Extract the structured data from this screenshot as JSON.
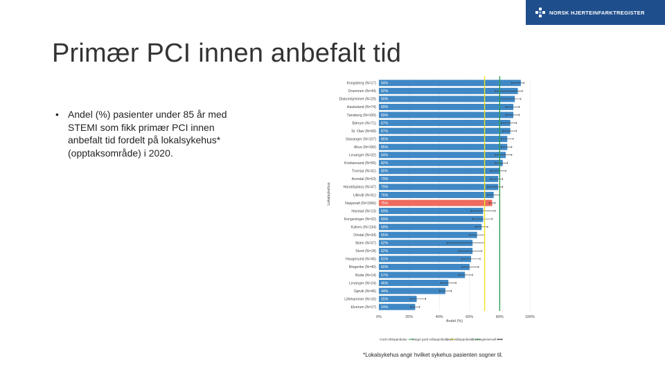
{
  "header": {
    "logo_text": "NORSK HJERTEINFARKTREGISTER",
    "logo_icon": "registry-cross-icon",
    "brand_color": "#1f4e8c"
  },
  "slide": {
    "title": "Primær PCI innen anbefalt tid",
    "bullet_marker": "•",
    "bullet": "Andel (%) pasienter under 85 år med STEMI som fikk primær PCI innen anbefalt tid fordelt på lokalsykehus* (opptaksområde) i 2020.",
    "footnote": "*Lokalsykehus angir hvilket sykehus pasienten sogner til."
  },
  "chart_data": {
    "type": "bar",
    "orientation": "horizontal",
    "title": "",
    "xlabel": "Andel (%)",
    "ylabel": "Lokalsykehus",
    "xlim": [
      0,
      100
    ],
    "xticks": [
      "0%",
      "20%",
      "40%",
      "60%",
      "80%",
      "100%"
    ],
    "categories": [
      "Kongsberg (N=17)",
      "Drammen (N=44)",
      "Diakonhjemmet (N=29)",
      "Haukeland (N=74)",
      "Tønsberg (N=100)",
      "Bærum (N=71)",
      "St. Olav (N=68)",
      "Stavanger (N=107)",
      "Ahus (N=190)",
      "Levanger (N=32)",
      "Kristiansand (N=56)",
      "Tromsø (N=41)",
      "Arendal (N=53)",
      "Haraldsplass (N=47)",
      "Ullevål (N=61)",
      "Nasjonalt (N=1566)",
      "Harstad (N=13)",
      "Kongsvinger (N=32)",
      "Kalnes (N=134)",
      "Orkdal (N=34)",
      "Skien (N=57)",
      "Stord (N=18)",
      "Haugesund (N=46)",
      "Ringerike (N=40)",
      "Bodø (N=14)",
      "Levanger (N=24)",
      "Gjøvik (N=46)",
      "Lillehammer (N=16)",
      "Elverum (N=17)"
    ],
    "values": [
      94,
      92,
      90,
      89,
      89,
      87,
      87,
      85,
      85,
      84,
      82,
      80,
      79,
      79,
      76,
      75,
      69,
      69,
      68,
      65,
      62,
      62,
      61,
      60,
      57,
      46,
      44,
      25,
      24
    ],
    "value_labels": [
      "94%",
      "92%",
      "90%",
      "89%",
      "89%",
      "87%",
      "87%",
      "85%",
      "85%",
      "84%",
      "82%",
      "80%",
      "79%",
      "79%",
      "76%",
      "75%",
      "69%",
      "69%",
      "68%",
      "65%",
      "62%",
      "62%",
      "61%",
      "60%",
      "57%",
      "46%",
      "44%",
      "25%",
      "24%"
    ],
    "error_intervals": [
      [
        88,
        96
      ],
      [
        77,
        95
      ],
      [
        80,
        94
      ],
      [
        84,
        93
      ],
      [
        84,
        93
      ],
      [
        81,
        91
      ],
      [
        82,
        91
      ],
      [
        81,
        89
      ],
      [
        81,
        88
      ],
      [
        77,
        88
      ],
      [
        77,
        85
      ],
      [
        74,
        84
      ],
      [
        74,
        82
      ],
      [
        72,
        82
      ],
      [
        72,
        80
      ],
      [
        73,
        77
      ],
      [
        61,
        77
      ],
      [
        62,
        75
      ],
      [
        64,
        72
      ],
      [
        60,
        70
      ],
      [
        45,
        70
      ],
      [
        53,
        68
      ],
      [
        55,
        67
      ],
      [
        55,
        66
      ],
      [
        53,
        62
      ],
      [
        41,
        51
      ],
      [
        40,
        48
      ],
      [
        21,
        31
      ],
      [
        21,
        27
      ]
    ],
    "highlight_category": "Nasjonalt (N=1566)",
    "reference_lines": [
      {
        "name": "Godt måloppnåelse",
        "value": 80,
        "color": "#2e9e4f"
      },
      {
        "name": "Meget godt måloppnåelse",
        "value": 70,
        "color": "#f0e020"
      }
    ],
    "colors": {
      "bar": "#3f88c5",
      "highlight": "#ee6b5e",
      "error": "#333333",
      "grid": "#e6e6e6"
    },
    "legend": [
      {
        "label": "Godt måloppnåelse",
        "style": "line",
        "color": "#2e9e4f"
      },
      {
        "label": "Meget godt måloppnåelse",
        "style": "line",
        "color": "#f0e020"
      },
      {
        "label": "Godt måloppnåelse",
        "style": "line",
        "color": "#2e9e4f"
      },
      {
        "label": "Dovningsintervall",
        "style": "errorbar",
        "color": "#333333"
      }
    ],
    "legend_position": "bottom"
  }
}
